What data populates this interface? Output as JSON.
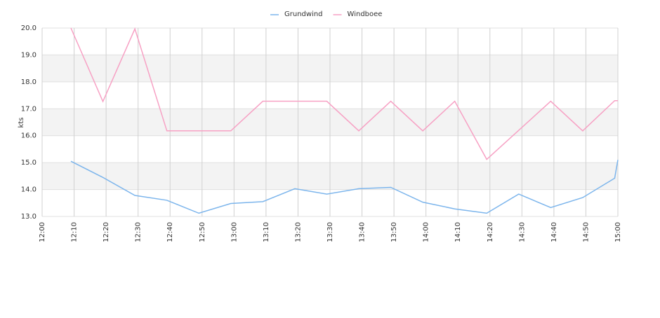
{
  "chart_data": {
    "type": "line",
    "y_label": "kts",
    "x": [
      "12:09",
      "12:19",
      "12:29",
      "12:39",
      "12:49",
      "12:59",
      "13:09",
      "13:19",
      "13:29",
      "13:39",
      "13:49",
      "13:59",
      "14:09",
      "14:19",
      "14:29",
      "14:39",
      "14:49",
      "14:59",
      "15:00"
    ],
    "series": [
      {
        "name": "Grundwind",
        "color": "#7cb5ec",
        "values": [
          15.05,
          14.45,
          13.78,
          13.6,
          13.12,
          13.48,
          13.55,
          14.03,
          13.83,
          14.03,
          14.08,
          13.53,
          13.28,
          13.12,
          13.83,
          13.33,
          13.7,
          14.42,
          15.1
        ]
      },
      {
        "name": "Windboee",
        "color": "#f7a1c4",
        "values": [
          20.0,
          17.27,
          19.97,
          16.18,
          16.18,
          16.18,
          17.28,
          17.28,
          17.28,
          16.18,
          17.28,
          16.18,
          17.28,
          15.12,
          16.2,
          17.28,
          16.18,
          17.3,
          17.3
        ]
      }
    ],
    "xlim": [
      "12:00",
      "15:00"
    ],
    "xticks": [
      "12:00",
      "12:10",
      "12:20",
      "12:30",
      "12:40",
      "12:50",
      "13:00",
      "13:10",
      "13:20",
      "13:30",
      "13:40",
      "13:50",
      "14:00",
      "14:10",
      "14:20",
      "14:30",
      "14:40",
      "14:50",
      "15:00"
    ],
    "ylim": [
      13,
      20
    ],
    "yticks": [
      {
        "value": 13,
        "label": "13.0"
      },
      {
        "value": 14,
        "label": "14.0"
      },
      {
        "value": 15,
        "label": "15.0"
      },
      {
        "value": 16,
        "label": "16.0"
      },
      {
        "value": 17,
        "label": "17.0"
      },
      {
        "value": 18,
        "label": "18.0"
      },
      {
        "value": 19,
        "label": "19.0"
      },
      {
        "value": 20,
        "label": "20.0"
      }
    ],
    "grid": true,
    "legend": "top"
  }
}
